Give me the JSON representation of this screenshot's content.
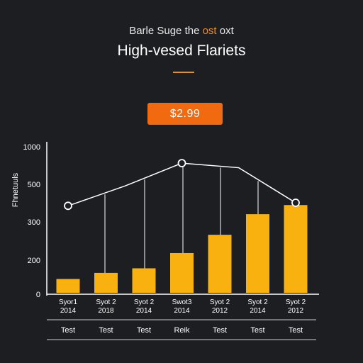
{
  "header": {
    "eyebrow_pre": "Barle Suge the ",
    "eyebrow_accent": "ost",
    "eyebrow_post": " oxt",
    "title": "High-vesed Flariets",
    "price_badge": "$2.99"
  },
  "colors": {
    "background": "#1c1e22",
    "bar": "#f9b10f",
    "accent": "#f08a24",
    "badge": "#f26a10",
    "axis": "#ffffff",
    "line": "#ffffff"
  },
  "chart_data": {
    "type": "bar",
    "title": "High-vesed Flariets",
    "ylabel": "Fhnetuuls",
    "y_ticks": [
      "0",
      "200",
      "300",
      "500",
      "1000"
    ],
    "ylim": [
      0,
      1000
    ],
    "grid": false,
    "categories": [
      {
        "line1": "Syor1",
        "line2": "2014",
        "footer": "Test"
      },
      {
        "line1": "Syot 2",
        "line2": "2018",
        "footer": "Test"
      },
      {
        "line1": "Syot 2",
        "line2": "2014",
        "footer": "Test"
      },
      {
        "line1": "Swot3",
        "line2": "2014",
        "footer": "Reik"
      },
      {
        "line1": "Syot 2",
        "line2": "2012",
        "footer": "Test"
      },
      {
        "line1": "Syot 2",
        "line2": "2014",
        "footer": "Test"
      },
      {
        "line1": "Syot 2",
        "line2": "2012",
        "footer": "Test"
      }
    ],
    "values": [
      100,
      140,
      170,
      270,
      390,
      525,
      585
    ],
    "overlay_line": {
      "values": [
        580,
        710,
        860,
        830,
        600
      ],
      "positions": [
        0,
        1.5,
        3,
        4.5,
        6
      ]
    }
  }
}
